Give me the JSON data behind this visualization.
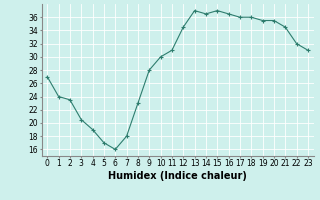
{
  "x": [
    0,
    1,
    2,
    3,
    4,
    5,
    6,
    7,
    8,
    9,
    10,
    11,
    12,
    13,
    14,
    15,
    16,
    17,
    18,
    19,
    20,
    21,
    22,
    23
  ],
  "y": [
    27,
    24,
    23.5,
    20.5,
    19,
    17,
    16,
    18,
    23,
    28,
    30,
    31,
    34.5,
    37,
    36.5,
    37,
    36.5,
    36,
    36,
    35.5,
    35.5,
    34.5,
    32,
    31
  ],
  "xlabel": "Humidex (Indice chaleur)",
  "ylabel": "",
  "xlim": [
    -0.5,
    23.5
  ],
  "ylim": [
    15,
    38
  ],
  "yticks": [
    16,
    18,
    20,
    22,
    24,
    26,
    28,
    30,
    32,
    34,
    36
  ],
  "xticks": [
    0,
    1,
    2,
    3,
    4,
    5,
    6,
    7,
    8,
    9,
    10,
    11,
    12,
    13,
    14,
    15,
    16,
    17,
    18,
    19,
    20,
    21,
    22,
    23
  ],
  "line_color": "#2e7d6e",
  "marker": "+",
  "bg_color": "#cef0ec",
  "grid_color": "#ffffff",
  "xlabel_fontsize": 7,
  "tick_fontsize": 5.5
}
